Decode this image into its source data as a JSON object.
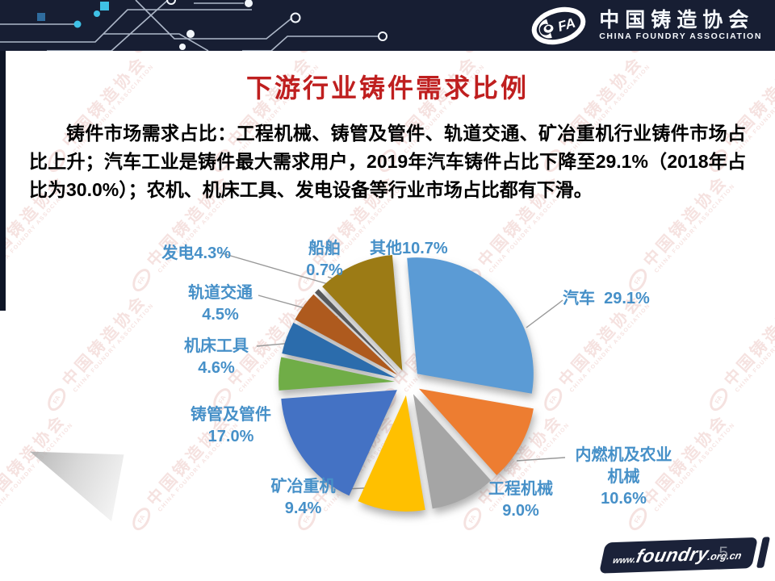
{
  "header": {
    "logo_abbr": "FA",
    "org_cn": "中国铸造协会",
    "org_en": "CHINA FOUNDRY ASSOCIATION"
  },
  "slide": {
    "title": "下游行业铸件需求比例",
    "paragraph": "铸件市场需求占比：工程机械、铸管及管件、轨道交通、矿冶重机行业铸件市场占比上升；汽车工业是铸件最大需求用户，2019年汽车铸件占比下降至29.1%（2018年占比为30.0%）；农机、机床工具、发电设备等行业市场占比都有下滑。",
    "page_number": "5"
  },
  "footer": {
    "prefix": "www.",
    "domain": "foundry",
    "suffix": ".org.cn"
  },
  "watermark": {
    "cn": "中国铸造协会",
    "en": "CHINA FOUNDRY ASSOCIATION",
    "abbr": "FA"
  },
  "chart_data": {
    "type": "pie",
    "title": "下游行业铸件需求比例",
    "unit": "%",
    "exploded": true,
    "start_angle_deg": -5,
    "legend_position": "none",
    "series": [
      {
        "name": "汽车",
        "value": 29.1,
        "color": "#5B9BD5",
        "label_lines": [
          "汽车  29.1%"
        ]
      },
      {
        "name": "内燃机及农业机械",
        "value": 10.6,
        "color": "#ED7D31",
        "label_lines": [
          "内燃机及农业",
          "机械",
          "10.6%"
        ]
      },
      {
        "name": "工程机械",
        "value": 9.0,
        "color": "#A5A5A5",
        "label_lines": [
          "工程机械",
          "9.0%"
        ]
      },
      {
        "name": "矿冶重机",
        "value": 9.4,
        "color": "#FFC000",
        "label_lines": [
          "矿冶重机",
          "9.4%"
        ]
      },
      {
        "name": "铸管及管件",
        "value": 17.0,
        "color": "#4472C4",
        "label_lines": [
          "铸管及管件",
          "17.0%"
        ]
      },
      {
        "name": "机床工具",
        "value": 4.6,
        "color": "#70AD47",
        "label_lines": [
          "机床工具",
          "4.6%"
        ]
      },
      {
        "name": "轨道交通",
        "value": 4.5,
        "color": "#2B6CAC",
        "label_lines": [
          "轨道交通",
          "4.5%"
        ]
      },
      {
        "name": "发电",
        "value": 4.3,
        "color": "#AE5A1E",
        "label_lines": [
          "发电4.3%"
        ]
      },
      {
        "name": "船舶",
        "value": 0.7,
        "color": "#57585A",
        "label_lines": [
          "船舶",
          "0.7%"
        ]
      },
      {
        "name": "其他",
        "value": 10.7,
        "color": "#9C7B15",
        "label_lines": [
          "其他10.7%"
        ]
      }
    ]
  }
}
